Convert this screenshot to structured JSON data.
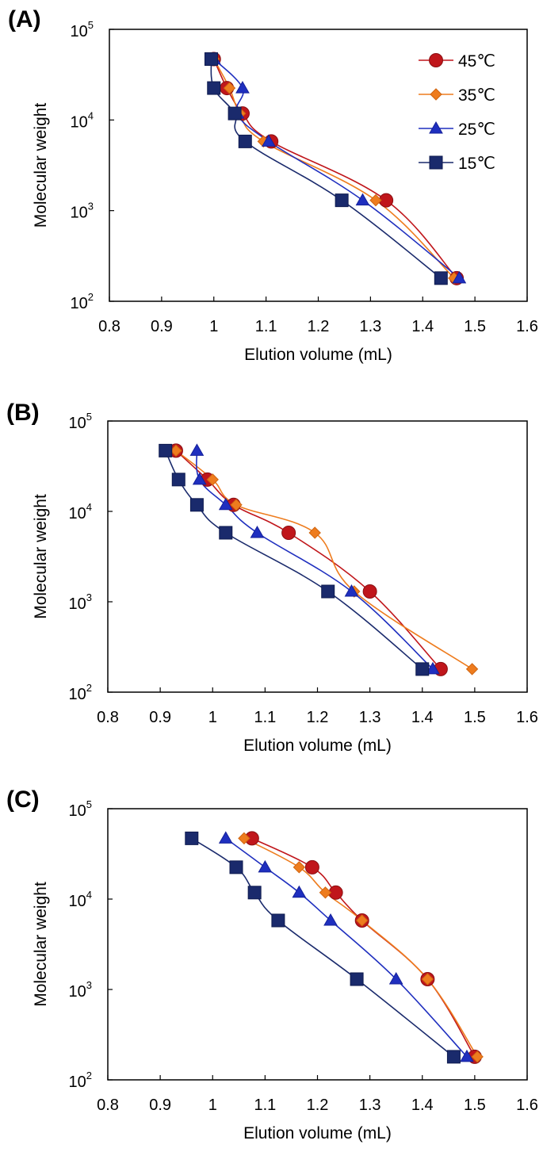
{
  "legend": [
    {
      "label": "45℃",
      "color": "#c0161b",
      "stroke": "#8a0f12",
      "marker": "circle"
    },
    {
      "label": "35℃",
      "color": "#ee7c1e",
      "stroke": "#d06510",
      "marker": "diamond"
    },
    {
      "label": "25℃",
      "color": "#1f2fbf",
      "stroke": "#14209a",
      "marker": "triangle"
    },
    {
      "label": "15℃",
      "color": "#1a2a6c",
      "stroke": "#0f1b4f",
      "marker": "square"
    }
  ],
  "chart_data": [
    {
      "panel": "(A)",
      "type": "line",
      "xlabel": "Elution volume (mL)",
      "ylabel": "Molecular weight",
      "xlim": [
        0.8,
        1.6
      ],
      "xticks": [
        "0.8",
        "0.9",
        "1",
        "1.1",
        "1.2",
        "1.3",
        "1.4",
        "1.5",
        "1.6"
      ],
      "ylim": [
        100,
        100000
      ],
      "yscale": "log",
      "yticks": [
        {
          "base": "10",
          "exp": "2"
        },
        {
          "base": "10",
          "exp": "3"
        },
        {
          "base": "10",
          "exp": "4"
        },
        {
          "base": "10",
          "exp": "5"
        }
      ],
      "show_legend": true,
      "legend_position": "top-right",
      "series": [
        {
          "name": "45℃",
          "x": [
            1.0,
            1.025,
            1.055,
            1.11,
            1.33,
            1.465
          ],
          "y": [
            47000,
            22500,
            11800,
            5800,
            1300,
            180
          ]
        },
        {
          "name": "35℃",
          "x": [
            1.0,
            1.03,
            1.05,
            1.095,
            1.31,
            1.46
          ],
          "y": [
            47000,
            22500,
            11800,
            5800,
            1300,
            180
          ]
        },
        {
          "name": "25℃",
          "x": [
            1.0,
            1.055,
            1.045,
            1.105,
            1.285,
            1.47
          ],
          "y": [
            47000,
            22500,
            11800,
            5800,
            1300,
            180
          ]
        },
        {
          "name": "15℃",
          "x": [
            0.995,
            1.0,
            1.04,
            1.06,
            1.245,
            1.435
          ],
          "y": [
            47000,
            22500,
            11800,
            5800,
            1300,
            180
          ]
        }
      ]
    },
    {
      "panel": "(B)",
      "type": "line",
      "xlabel": "Elution volume (mL)",
      "ylabel": "Molecular weight",
      "xlim": [
        0.8,
        1.6
      ],
      "xticks": [
        "0.8",
        "0.9",
        "1",
        "1.1",
        "1.2",
        "1.3",
        "1.4",
        "1.5",
        "1.6"
      ],
      "ylim": [
        100,
        100000
      ],
      "yscale": "log",
      "yticks": [
        {
          "base": "10",
          "exp": "2"
        },
        {
          "base": "10",
          "exp": "3"
        },
        {
          "base": "10",
          "exp": "4"
        },
        {
          "base": "10",
          "exp": "5"
        }
      ],
      "show_legend": false,
      "series": [
        {
          "name": "45℃",
          "x": [
            0.93,
            0.99,
            1.04,
            1.145,
            1.3,
            1.435
          ],
          "y": [
            47000,
            22500,
            11800,
            5800,
            1300,
            180
          ]
        },
        {
          "name": "35℃",
          "x": [
            0.93,
            1.0,
            1.045,
            1.195,
            1.27,
            1.495
          ],
          "y": [
            47000,
            22500,
            11800,
            5800,
            1300,
            180
          ]
        },
        {
          "name": "25℃",
          "x": [
            0.97,
            0.975,
            1.025,
            1.085,
            1.265,
            1.42
          ],
          "y": [
            47000,
            22500,
            11800,
            5800,
            1300,
            180
          ]
        },
        {
          "name": "15℃",
          "x": [
            0.91,
            0.935,
            0.97,
            1.025,
            1.22,
            1.4
          ],
          "y": [
            47000,
            22500,
            11800,
            5800,
            1300,
            180
          ]
        }
      ]
    },
    {
      "panel": "(C)",
      "type": "line",
      "xlabel": "Elution volume (mL)",
      "ylabel": "Molecular weight",
      "xlim": [
        0.8,
        1.6
      ],
      "xticks": [
        "0.8",
        "0.9",
        "1",
        "1.1",
        "1.2",
        "1.3",
        "1.4",
        "1.5",
        "1.6"
      ],
      "ylim": [
        100,
        100000
      ],
      "yscale": "log",
      "yticks": [
        {
          "base": "10",
          "exp": "2"
        },
        {
          "base": "10",
          "exp": "3"
        },
        {
          "base": "10",
          "exp": "4"
        },
        {
          "base": "10",
          "exp": "5"
        }
      ],
      "show_legend": false,
      "series": [
        {
          "name": "45℃",
          "x": [
            1.075,
            1.19,
            1.235,
            1.285,
            1.41,
            1.5
          ],
          "y": [
            47000,
            22500,
            11800,
            5800,
            1300,
            180
          ]
        },
        {
          "name": "35℃",
          "x": [
            1.06,
            1.165,
            1.215,
            1.285,
            1.41,
            1.505
          ],
          "y": [
            47000,
            22500,
            11800,
            5800,
            1300,
            180
          ]
        },
        {
          "name": "25℃",
          "x": [
            1.025,
            1.1,
            1.165,
            1.225,
            1.35,
            1.485
          ],
          "y": [
            47000,
            22500,
            11800,
            5800,
            1300,
            180
          ]
        },
        {
          "name": "15℃",
          "x": [
            0.96,
            1.045,
            1.08,
            1.125,
            1.275,
            1.46
          ],
          "y": [
            47000,
            22500,
            11800,
            5800,
            1300,
            180
          ]
        }
      ]
    }
  ]
}
